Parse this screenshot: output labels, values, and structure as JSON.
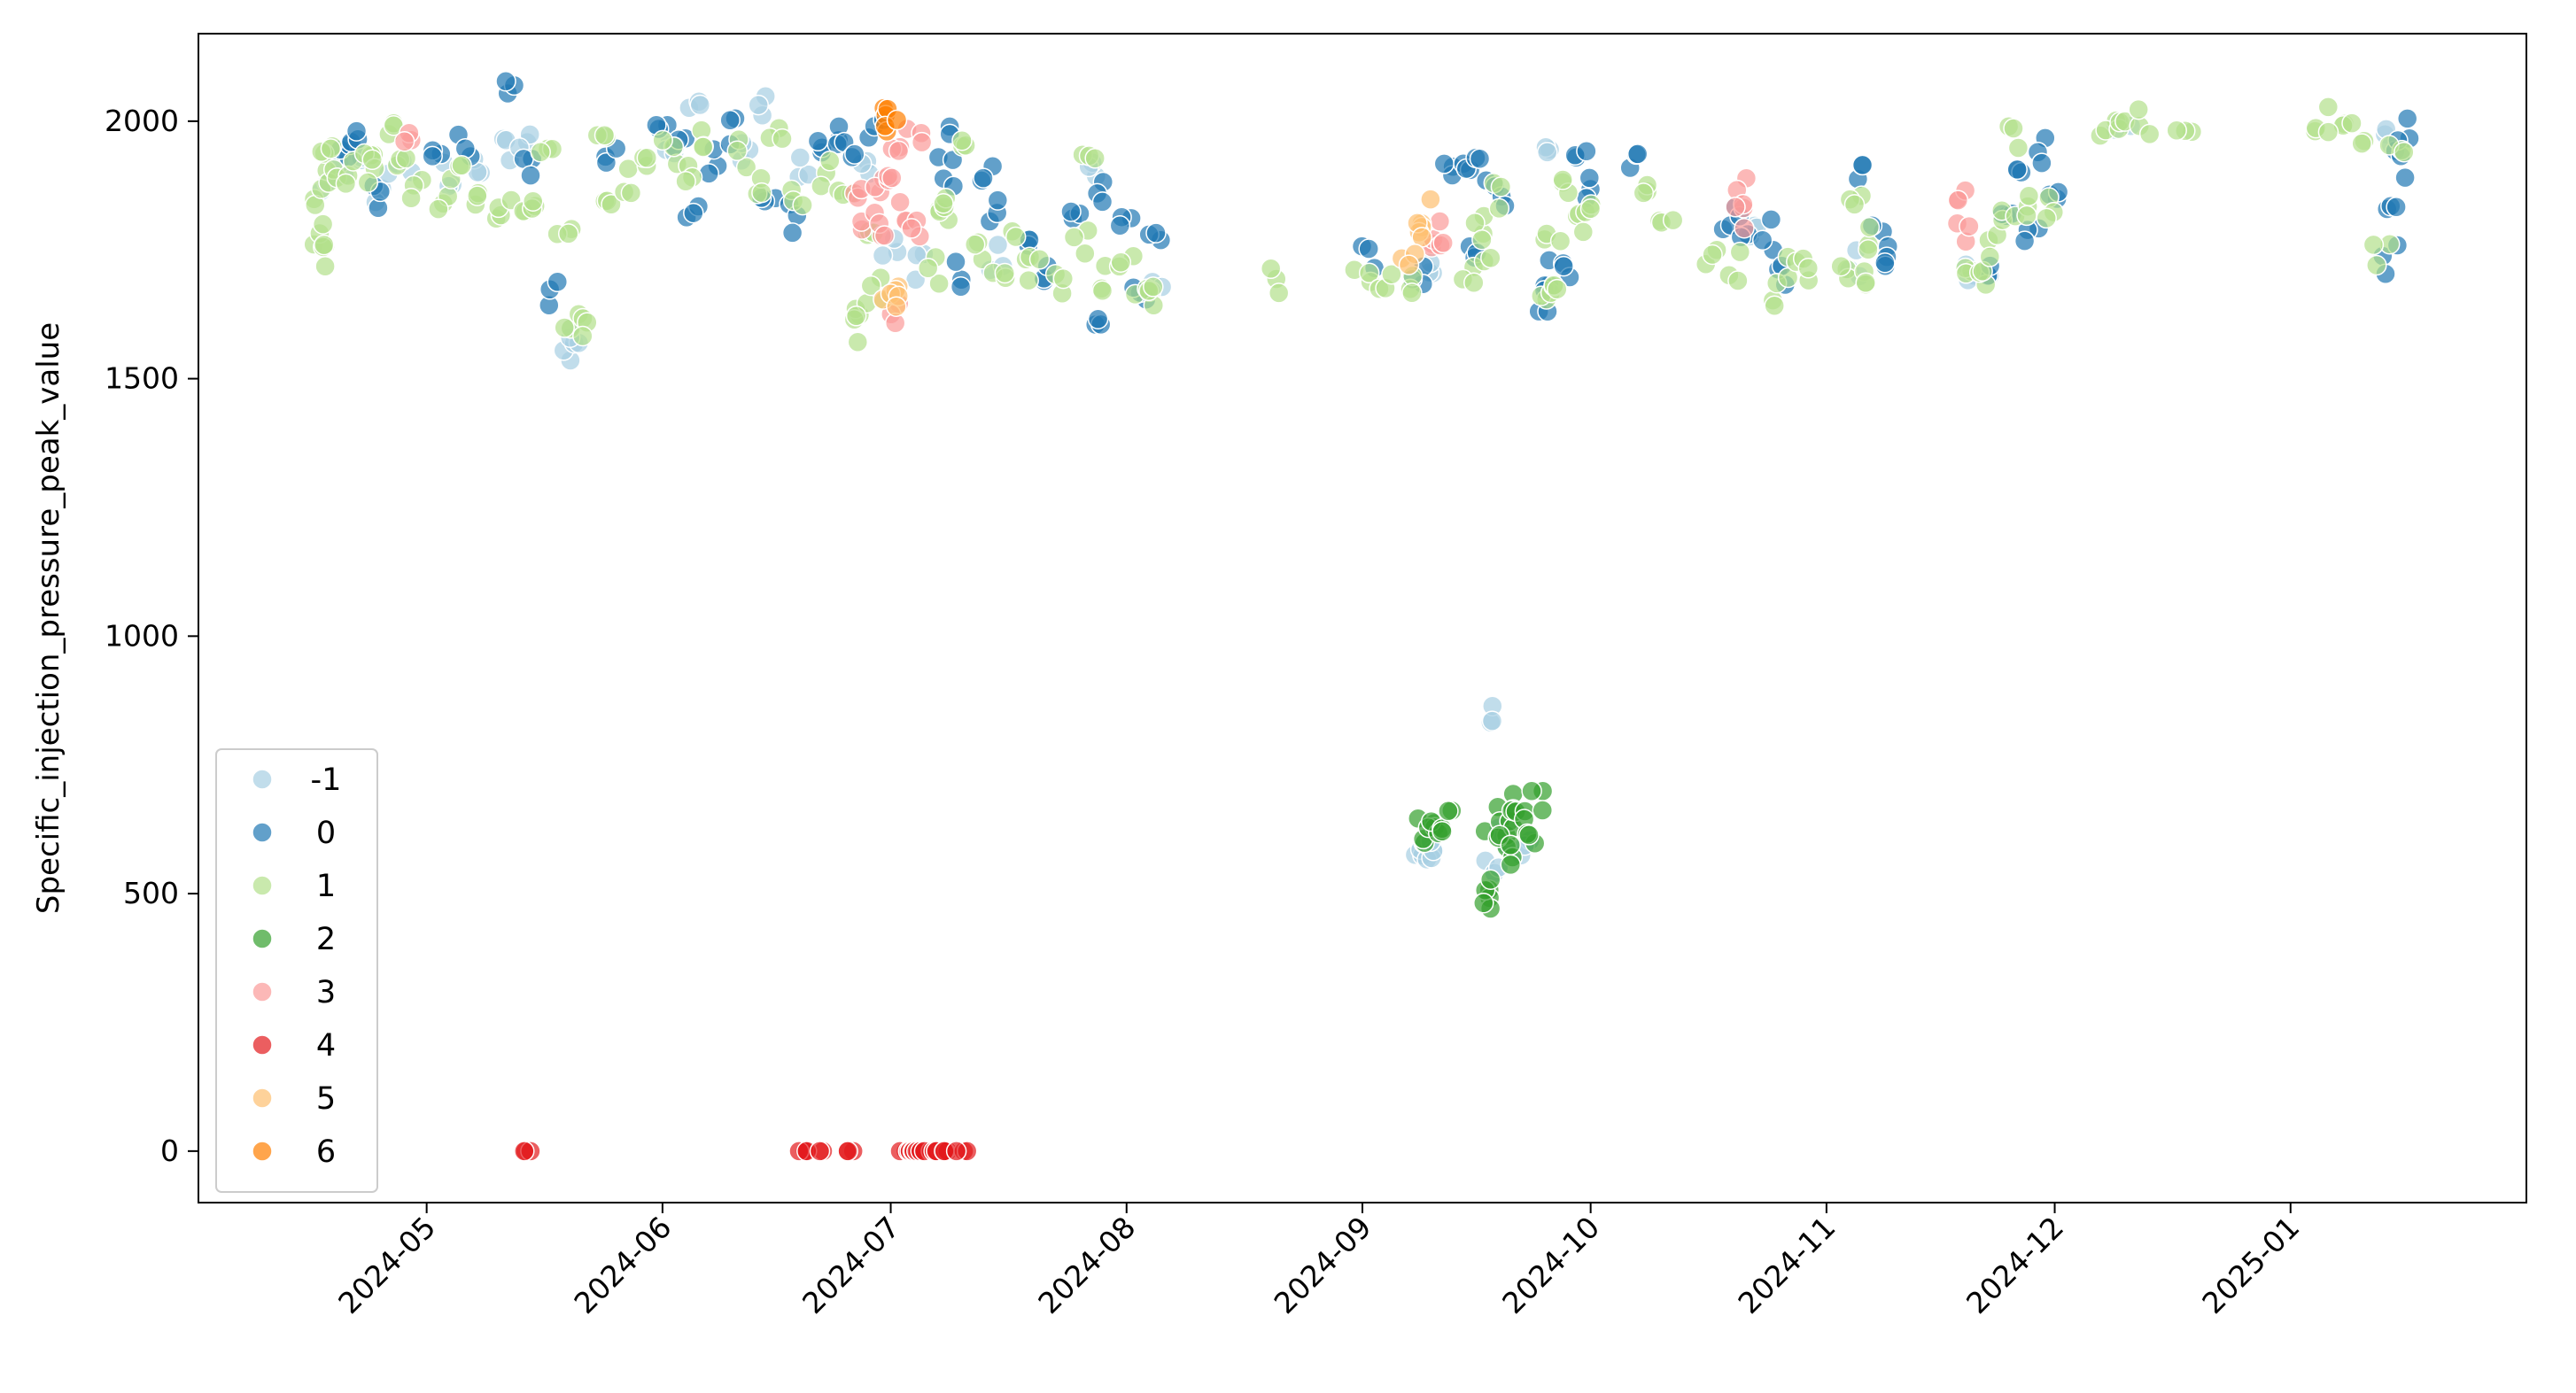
{
  "chart_data": {
    "type": "scatter",
    "title": "",
    "xlabel": "",
    "ylabel": "Specific_injection_pressure_peak_value",
    "x_type": "date",
    "xlim": [
      "2024-04-01",
      "2025-02-01"
    ],
    "ylim": [
      -100,
      2170
    ],
    "x_ticks": [
      "2024-05",
      "2024-06",
      "2024-07",
      "2024-08",
      "2024-09",
      "2024-10",
      "2024-11",
      "2024-12",
      "2025-01"
    ],
    "y_ticks": [
      0,
      500,
      1000,
      1500,
      2000
    ],
    "grid": false,
    "legend_position": "lower-left",
    "marker_alpha": 0.7,
    "series": [
      {
        "name": "-1",
        "color": "#a6cee3",
        "points": [
          [
            "2024-04-18",
            1880
          ],
          [
            "2024-04-20",
            1900
          ],
          [
            "2024-04-22",
            1950
          ],
          [
            "2024-04-25",
            1870
          ],
          [
            "2024-04-28",
            1920
          ],
          [
            "2024-05-04",
            1890
          ],
          [
            "2024-05-08",
            1910
          ],
          [
            "2024-05-12",
            1940
          ],
          [
            "2024-05-14",
            1965
          ],
          [
            "2024-05-20",
            1560
          ],
          [
            "2024-05-20",
            1580
          ],
          [
            "2024-06-02",
            1960
          ],
          [
            "2024-06-05",
            2010
          ],
          [
            "2024-06-14",
            2040
          ],
          [
            "2024-06-12",
            1930
          ],
          [
            "2024-06-20",
            1900
          ],
          [
            "2024-06-28",
            1900
          ],
          [
            "2024-07-01",
            1760
          ],
          [
            "2024-07-05",
            1720
          ],
          [
            "2024-07-15",
            1740
          ],
          [
            "2024-07-28",
            1920
          ],
          [
            "2024-08-05",
            1700
          ],
          [
            "2024-09-10",
            1730
          ],
          [
            "2024-09-09",
            560
          ],
          [
            "2024-09-10",
            575
          ],
          [
            "2024-09-11",
            595
          ],
          [
            "2024-09-18",
            840
          ],
          [
            "2024-09-18",
            540
          ],
          [
            "2024-09-19",
            600
          ],
          [
            "2024-09-25",
            1920
          ],
          [
            "2024-09-22",
            600
          ],
          [
            "2024-10-22",
            1780
          ],
          [
            "2024-11-05",
            1720
          ],
          [
            "2024-11-20",
            1720
          ],
          [
            "2024-12-10",
            1990
          ],
          [
            "2025-01-14",
            1960
          ]
        ]
      },
      {
        "name": "0",
        "color": "#1f78b4",
        "points": [
          [
            "2024-04-20",
            1950
          ],
          [
            "2024-04-22",
            1980
          ],
          [
            "2024-04-25",
            1860
          ],
          [
            "2024-05-02",
            1960
          ],
          [
            "2024-05-06",
            1960
          ],
          [
            "2024-05-12",
            2070
          ],
          [
            "2024-05-14",
            1900
          ],
          [
            "2024-05-18",
            1660
          ],
          [
            "2024-05-25",
            1940
          ],
          [
            "2024-06-01",
            1980
          ],
          [
            "2024-06-03",
            1960
          ],
          [
            "2024-06-05",
            1820
          ],
          [
            "2024-06-08",
            1920
          ],
          [
            "2024-06-10",
            1980
          ],
          [
            "2024-06-15",
            1860
          ],
          [
            "2024-06-18",
            1810
          ],
          [
            "2024-06-22",
            1960
          ],
          [
            "2024-06-24",
            1980
          ],
          [
            "2024-06-26",
            1960
          ],
          [
            "2024-06-29",
            1980
          ],
          [
            "2024-07-08",
            1960
          ],
          [
            "2024-07-09",
            1900
          ],
          [
            "2024-07-10",
            1700
          ],
          [
            "2024-07-14",
            1900
          ],
          [
            "2024-07-15",
            1820
          ],
          [
            "2024-07-20",
            1780
          ],
          [
            "2024-07-22",
            1700
          ],
          [
            "2024-07-25",
            1810
          ],
          [
            "2024-07-28",
            1620
          ],
          [
            "2024-07-29",
            1860
          ],
          [
            "2024-08-01",
            1800
          ],
          [
            "2024-08-03",
            1680
          ],
          [
            "2024-08-05",
            1780
          ],
          [
            "2024-09-02",
            1740
          ],
          [
            "2024-09-08",
            1700
          ],
          [
            "2024-09-12",
            1900
          ],
          [
            "2024-09-15",
            1900
          ],
          [
            "2024-09-16",
            1760
          ],
          [
            "2024-09-17",
            1900
          ],
          [
            "2024-09-19",
            1860
          ],
          [
            "2024-09-25",
            1660
          ],
          [
            "2024-09-26",
            1700
          ],
          [
            "2024-09-28",
            1720
          ],
          [
            "2024-09-30",
            1930
          ],
          [
            "2024-09-30",
            1880
          ],
          [
            "2024-10-07",
            1920
          ],
          [
            "2024-10-19",
            1810
          ],
          [
            "2024-10-21",
            1790
          ],
          [
            "2024-10-24",
            1780
          ],
          [
            "2024-10-26",
            1700
          ],
          [
            "2024-11-05",
            1900
          ],
          [
            "2024-11-08",
            1780
          ],
          [
            "2024-11-09",
            1740
          ],
          [
            "2024-11-23",
            1720
          ],
          [
            "2024-11-25",
            1840
          ],
          [
            "2024-11-27",
            1900
          ],
          [
            "2024-11-29",
            1940
          ],
          [
            "2024-11-28",
            1790
          ],
          [
            "2024-12-01",
            1840
          ],
          [
            "2025-01-14",
            1820
          ],
          [
            "2025-01-15",
            1920
          ],
          [
            "2025-01-14",
            1730
          ],
          [
            "2025-01-16",
            1980
          ]
        ]
      },
      {
        "name": "1",
        "color": "#b2df8a",
        "points": [
          [
            "2024-04-17",
            1740
          ],
          [
            "2024-04-17",
            1780
          ],
          [
            "2024-04-17",
            1830
          ],
          [
            "2024-04-18",
            1880
          ],
          [
            "2024-04-18",
            1960
          ],
          [
            "2024-04-19",
            1920
          ],
          [
            "2024-04-21",
            1900
          ],
          [
            "2024-04-23",
            1960
          ],
          [
            "2024-04-24",
            1900
          ],
          [
            "2024-04-26",
            1980
          ],
          [
            "2024-04-28",
            1900
          ],
          [
            "2024-04-30",
            1860
          ],
          [
            "2024-05-03",
            1850
          ],
          [
            "2024-05-05",
            1900
          ],
          [
            "2024-05-07",
            1860
          ],
          [
            "2024-05-10",
            1830
          ],
          [
            "2024-05-13",
            1830
          ],
          [
            "2024-05-15",
            1850
          ],
          [
            "2024-05-17",
            1920
          ],
          [
            "2024-05-19",
            1810
          ],
          [
            "2024-05-20",
            1610
          ],
          [
            "2024-05-22",
            1610
          ],
          [
            "2024-05-24",
            1970
          ],
          [
            "2024-05-25",
            1860
          ],
          [
            "2024-05-28",
            1880
          ],
          [
            "2024-05-30",
            1900
          ],
          [
            "2024-06-02",
            1940
          ],
          [
            "2024-06-04",
            1900
          ],
          [
            "2024-06-07",
            1960
          ],
          [
            "2024-06-11",
            1940
          ],
          [
            "2024-06-14",
            1880
          ],
          [
            "2024-06-16",
            1960
          ],
          [
            "2024-06-19",
            1860
          ],
          [
            "2024-06-22",
            1900
          ],
          [
            "2024-06-25",
            1840
          ],
          [
            "2024-06-27",
            1640
          ],
          [
            "2024-06-27",
            1600
          ],
          [
            "2024-06-28",
            1760
          ],
          [
            "2024-06-29",
            1680
          ],
          [
            "2024-07-07",
            1710
          ],
          [
            "2024-07-08",
            1800
          ],
          [
            "2024-07-09",
            1850
          ],
          [
            "2024-07-10",
            1980
          ],
          [
            "2024-07-12",
            1740
          ],
          [
            "2024-07-15",
            1700
          ],
          [
            "2024-07-18",
            1760
          ],
          [
            "2024-07-20",
            1720
          ],
          [
            "2024-07-23",
            1680
          ],
          [
            "2024-07-26",
            1760
          ],
          [
            "2024-07-27",
            1930
          ],
          [
            "2024-07-29",
            1700
          ],
          [
            "2024-08-01",
            1720
          ],
          [
            "2024-08-03",
            1690
          ],
          [
            "2024-08-05",
            1660
          ],
          [
            "2024-08-20",
            1690
          ],
          [
            "2024-09-01",
            1690
          ],
          [
            "2024-09-04",
            1690
          ],
          [
            "2024-09-07",
            1690
          ],
          [
            "2024-09-15",
            1700
          ],
          [
            "2024-09-16",
            1800
          ],
          [
            "2024-09-17",
            1750
          ],
          [
            "2024-09-19",
            1860
          ],
          [
            "2024-09-25",
            1680
          ],
          [
            "2024-09-26",
            1780
          ],
          [
            "2024-09-27",
            1700
          ],
          [
            "2024-09-28",
            1860
          ],
          [
            "2024-09-29",
            1800
          ],
          [
            "2024-09-30",
            1840
          ],
          [
            "2024-10-08",
            1860
          ],
          [
            "2024-10-11",
            1830
          ],
          [
            "2024-10-17",
            1740
          ],
          [
            "2024-10-20",
            1720
          ],
          [
            "2024-10-25",
            1660
          ],
          [
            "2024-10-27",
            1720
          ],
          [
            "2024-10-29",
            1720
          ],
          [
            "2024-11-03",
            1710
          ],
          [
            "2024-11-05",
            1830
          ],
          [
            "2024-11-06",
            1780
          ],
          [
            "2024-11-07",
            1700
          ],
          [
            "2024-11-19",
            1700
          ],
          [
            "2024-11-21",
            1680
          ],
          [
            "2024-11-23",
            1760
          ],
          [
            "2024-11-25",
            1820
          ],
          [
            "2024-11-26",
            1970
          ],
          [
            "2024-11-28",
            1830
          ],
          [
            "2024-12-01",
            1830
          ],
          [
            "2024-12-08",
            2000
          ],
          [
            "2024-12-10",
            1990
          ],
          [
            "2024-12-13",
            2000
          ],
          [
            "2024-12-18",
            2000
          ],
          [
            "2025-01-05",
            2000
          ],
          [
            "2025-01-07",
            1980
          ],
          [
            "2025-01-10",
            1980
          ],
          [
            "2025-01-13",
            1740
          ],
          [
            "2025-01-15",
            1970
          ]
        ]
      },
      {
        "name": "2",
        "color": "#33a02c",
        "points": [
          [
            "2024-09-09",
            620
          ],
          [
            "2024-09-10",
            640
          ],
          [
            "2024-09-11",
            630
          ],
          [
            "2024-09-12",
            650
          ],
          [
            "2024-09-18",
            480
          ],
          [
            "2024-09-18",
            510
          ],
          [
            "2024-09-18",
            650
          ],
          [
            "2024-09-19",
            620
          ],
          [
            "2024-09-20",
            640
          ],
          [
            "2024-09-21",
            570
          ],
          [
            "2024-09-21",
            680
          ],
          [
            "2024-09-22",
            660
          ],
          [
            "2024-09-23",
            620
          ],
          [
            "2024-09-24",
            670
          ]
        ]
      },
      {
        "name": "3",
        "color": "#fb9a99",
        "points": [
          [
            "2024-04-29",
            1970
          ],
          [
            "2024-06-27",
            1850
          ],
          [
            "2024-06-28",
            1810
          ],
          [
            "2024-06-29",
            1880
          ],
          [
            "2024-06-30",
            1800
          ],
          [
            "2024-07-01",
            1900
          ],
          [
            "2024-07-01",
            1620
          ],
          [
            "2024-07-02",
            1950
          ],
          [
            "2024-07-03",
            1820
          ],
          [
            "2024-07-04",
            1980
          ],
          [
            "2024-07-04",
            1790
          ],
          [
            "2024-09-10",
            1780
          ],
          [
            "2024-09-12",
            1780
          ],
          [
            "2024-10-21",
            1860
          ],
          [
            "2024-10-21",
            1820
          ],
          [
            "2024-11-19",
            1840
          ],
          [
            "2024-11-19",
            1790
          ]
        ]
      },
      {
        "name": "4",
        "color": "#e31a1c",
        "points": [
          [
            "2024-05-14",
            0
          ],
          [
            "2024-06-20",
            0
          ],
          [
            "2024-06-21",
            0
          ],
          [
            "2024-06-26",
            0
          ],
          [
            "2024-07-03",
            0
          ],
          [
            "2024-07-04",
            0
          ],
          [
            "2024-07-05",
            0
          ],
          [
            "2024-07-06",
            0
          ],
          [
            "2024-07-07",
            0
          ],
          [
            "2024-07-08",
            0
          ],
          [
            "2024-07-09",
            0
          ],
          [
            "2024-07-10",
            0
          ]
        ]
      },
      {
        "name": "5",
        "color": "#fdbf6f",
        "points": [
          [
            "2024-07-01",
            1680
          ],
          [
            "2024-07-01",
            1660
          ],
          [
            "2024-09-09",
            1820
          ],
          [
            "2024-09-08",
            1780
          ],
          [
            "2024-09-07",
            1720
          ]
        ]
      },
      {
        "name": "6",
        "color": "#ff7f00",
        "points": [
          [
            "2024-06-30",
            2010
          ],
          [
            "2024-07-01",
            2010
          ]
        ]
      }
    ]
  }
}
